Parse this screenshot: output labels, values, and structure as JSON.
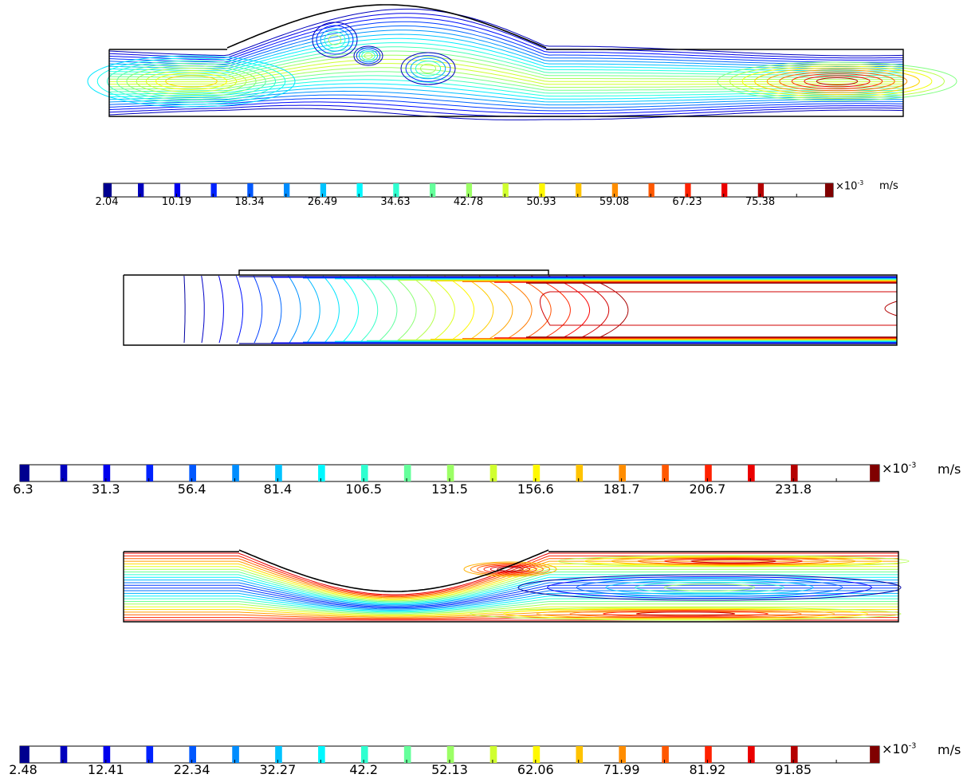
{
  "colors": {
    "scale": [
      "#00008f",
      "#0000ff",
      "#0080ff",
      "#00ffff",
      "#80ff80",
      "#ffff00",
      "#ff8000",
      "#ff0000",
      "#800000"
    ],
    "wall": "#000000"
  },
  "panels": [
    {
      "id": "bulge",
      "shape": "bulge",
      "colorbar": {
        "ticks": [
          "2.04",
          "10.19",
          "18.34",
          "26.49",
          "34.63",
          "42.78",
          "50.93",
          "59.08",
          "67.23",
          "75.38"
        ],
        "multiplier_base": "×10",
        "multiplier_exp": "-3",
        "unit": "m/s"
      }
    },
    {
      "id": "straight",
      "shape": "straight",
      "colorbar": {
        "ticks": [
          "6.3",
          "31.3",
          "56.4",
          "81.4",
          "106.5",
          "131.5",
          "156.6",
          "181.7",
          "206.7",
          "231.8"
        ],
        "multiplier_base": "×10",
        "multiplier_exp": "-3",
        "unit": "m/s"
      }
    },
    {
      "id": "stenosis",
      "shape": "stenosis",
      "colorbar": {
        "ticks": [
          "2.48",
          "12.41",
          "22.34",
          "32.27",
          "42.2",
          "52.13",
          "62.06",
          "71.99",
          "81.92",
          "91.85"
        ],
        "multiplier_base": "×10",
        "multiplier_exp": "-3",
        "unit": "m/s"
      }
    }
  ]
}
